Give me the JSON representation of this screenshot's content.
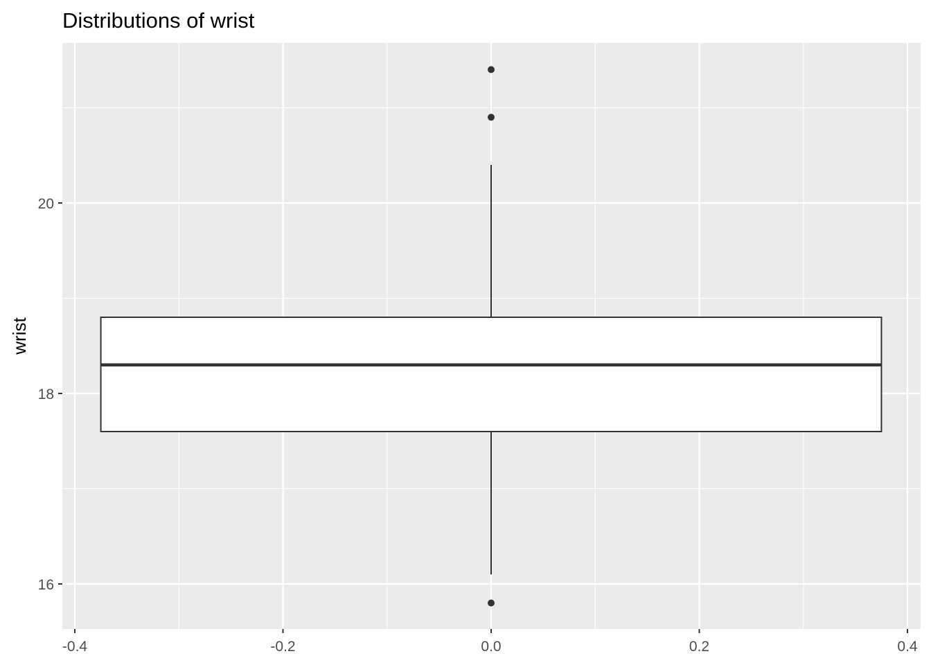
{
  "chart_data": {
    "type": "boxplot",
    "title": "Distributions of wrist",
    "xlabel": "",
    "ylabel": "wrist",
    "xlim": [
      -0.4,
      0.4
    ],
    "ylim": [
      15.6,
      21.7
    ],
    "x_ticks": [
      -0.4,
      -0.2,
      0.0,
      0.2,
      0.4
    ],
    "x_tick_labels": [
      "-0.4",
      "-0.2",
      "0.0",
      "0.2",
      "0.4"
    ],
    "y_ticks": [
      16,
      18,
      20
    ],
    "y_tick_labels": [
      "16",
      "18",
      "20"
    ],
    "grid": true,
    "colors": {
      "panel_background": "#ebebeb",
      "grid": "#ffffff",
      "box_fill": "#ffffff",
      "box_stroke": "#333333"
    },
    "box": {
      "x": 0.0,
      "width": 0.75,
      "q1": 17.6,
      "median": 18.3,
      "q3": 18.8,
      "whisker_low": 16.1,
      "whisker_high": 20.4,
      "outliers": [
        15.8,
        20.9,
        21.4
      ]
    }
  }
}
